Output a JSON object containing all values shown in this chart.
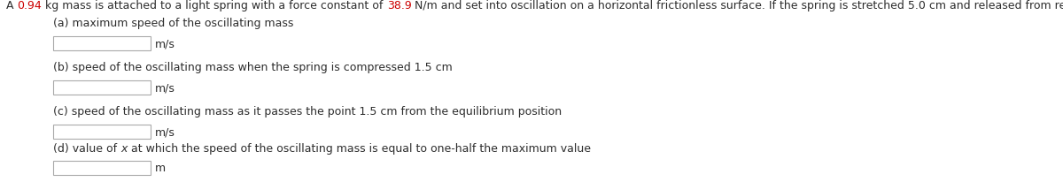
{
  "title_parts": [
    {
      "text": "A ",
      "color": "#2d2d2d",
      "style": "normal"
    },
    {
      "text": "0.94",
      "color": "#cc0000",
      "style": "normal"
    },
    {
      "text": " kg mass is attached to a light spring with a force constant of ",
      "color": "#2d2d2d",
      "style": "normal"
    },
    {
      "text": "38.9",
      "color": "#cc0000",
      "style": "normal"
    },
    {
      "text": " N/m and set into oscillation on a horizontal frictionless surface. If the spring is stretched 5.0 cm and released from rest, determine the following.",
      "color": "#2d2d2d",
      "style": "normal"
    }
  ],
  "items": [
    {
      "label_parts": [
        {
          "text": "(a) maximum speed of the oscillating mass",
          "color": "#2d2d2d",
          "style": "normal"
        }
      ],
      "unit": "m/s"
    },
    {
      "label_parts": [
        {
          "text": "(b) speed of the oscillating mass when the spring is compressed 1.5 cm",
          "color": "#2d2d2d",
          "style": "normal"
        }
      ],
      "unit": "m/s"
    },
    {
      "label_parts": [
        {
          "text": "(c) speed of the oscillating mass as it passes the point 1.5 cm from the equilibrium position",
          "color": "#2d2d2d",
          "style": "normal"
        }
      ],
      "unit": "m/s"
    },
    {
      "label_parts": [
        {
          "text": "(d) value of ",
          "color": "#2d2d2d",
          "style": "normal"
        },
        {
          "text": "x",
          "color": "#2d2d2d",
          "style": "italic"
        },
        {
          "text": " at which the speed of the oscillating mass is equal to one-half the maximum value",
          "color": "#2d2d2d",
          "style": "normal"
        }
      ],
      "unit": "m"
    }
  ],
  "bg_color": "#ffffff",
  "font_size": 9.0,
  "title_font_size": 9.0,
  "fig_width": 12.0,
  "fig_height": 2.07,
  "dpi": 100
}
